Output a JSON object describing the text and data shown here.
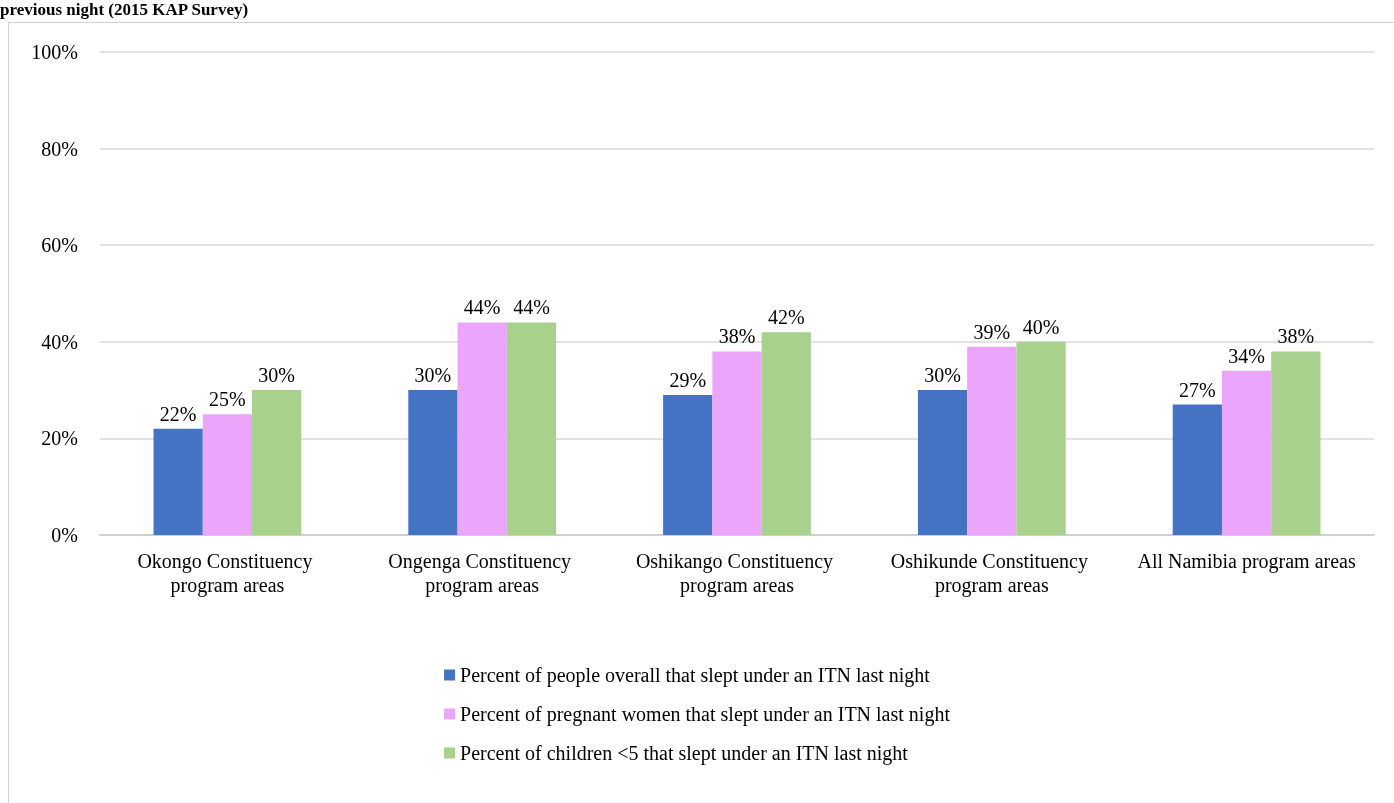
{
  "chart_data": {
    "type": "bar",
    "title": "previous night (2015 KAP Survey)",
    "categories": [
      "Okongo Constituency program areas",
      "Ongenga Constituency program areas",
      "Oshikango Constituency program areas",
      "Oshikunde Constituency program areas",
      "All Namibia program areas"
    ],
    "series": [
      {
        "name": "Percent of people overall that slept under an ITN last night",
        "color": "#4472c4",
        "values": [
          22,
          30,
          29,
          30,
          27
        ],
        "value_labels": [
          "22%",
          "30%",
          "29%",
          "30%",
          "27%"
        ]
      },
      {
        "name": "Percent of pregnant women that slept under an ITN last night",
        "color": "#eba6fb",
        "values": [
          25,
          44,
          38,
          39,
          34
        ],
        "value_labels": [
          "25%",
          "44%",
          "38%",
          "39%",
          "34%"
        ]
      },
      {
        "name": "Percent of children <5 that slept under an ITN last night",
        "color": "#a9d18e",
        "values": [
          30,
          44,
          42,
          40,
          38
        ],
        "value_labels": [
          "30%",
          "44%",
          "42%",
          "40%",
          "38%"
        ]
      }
    ],
    "ylim": [
      0,
      100
    ],
    "yticks": [
      {
        "value": 0,
        "label": "0%"
      },
      {
        "value": 20,
        "label": "20%"
      },
      {
        "value": 40,
        "label": "40%"
      },
      {
        "value": 60,
        "label": "60%"
      },
      {
        "value": 80,
        "label": "80%"
      },
      {
        "value": 100,
        "label": "100%"
      }
    ],
    "grid": "y",
    "legend": "bottom"
  }
}
